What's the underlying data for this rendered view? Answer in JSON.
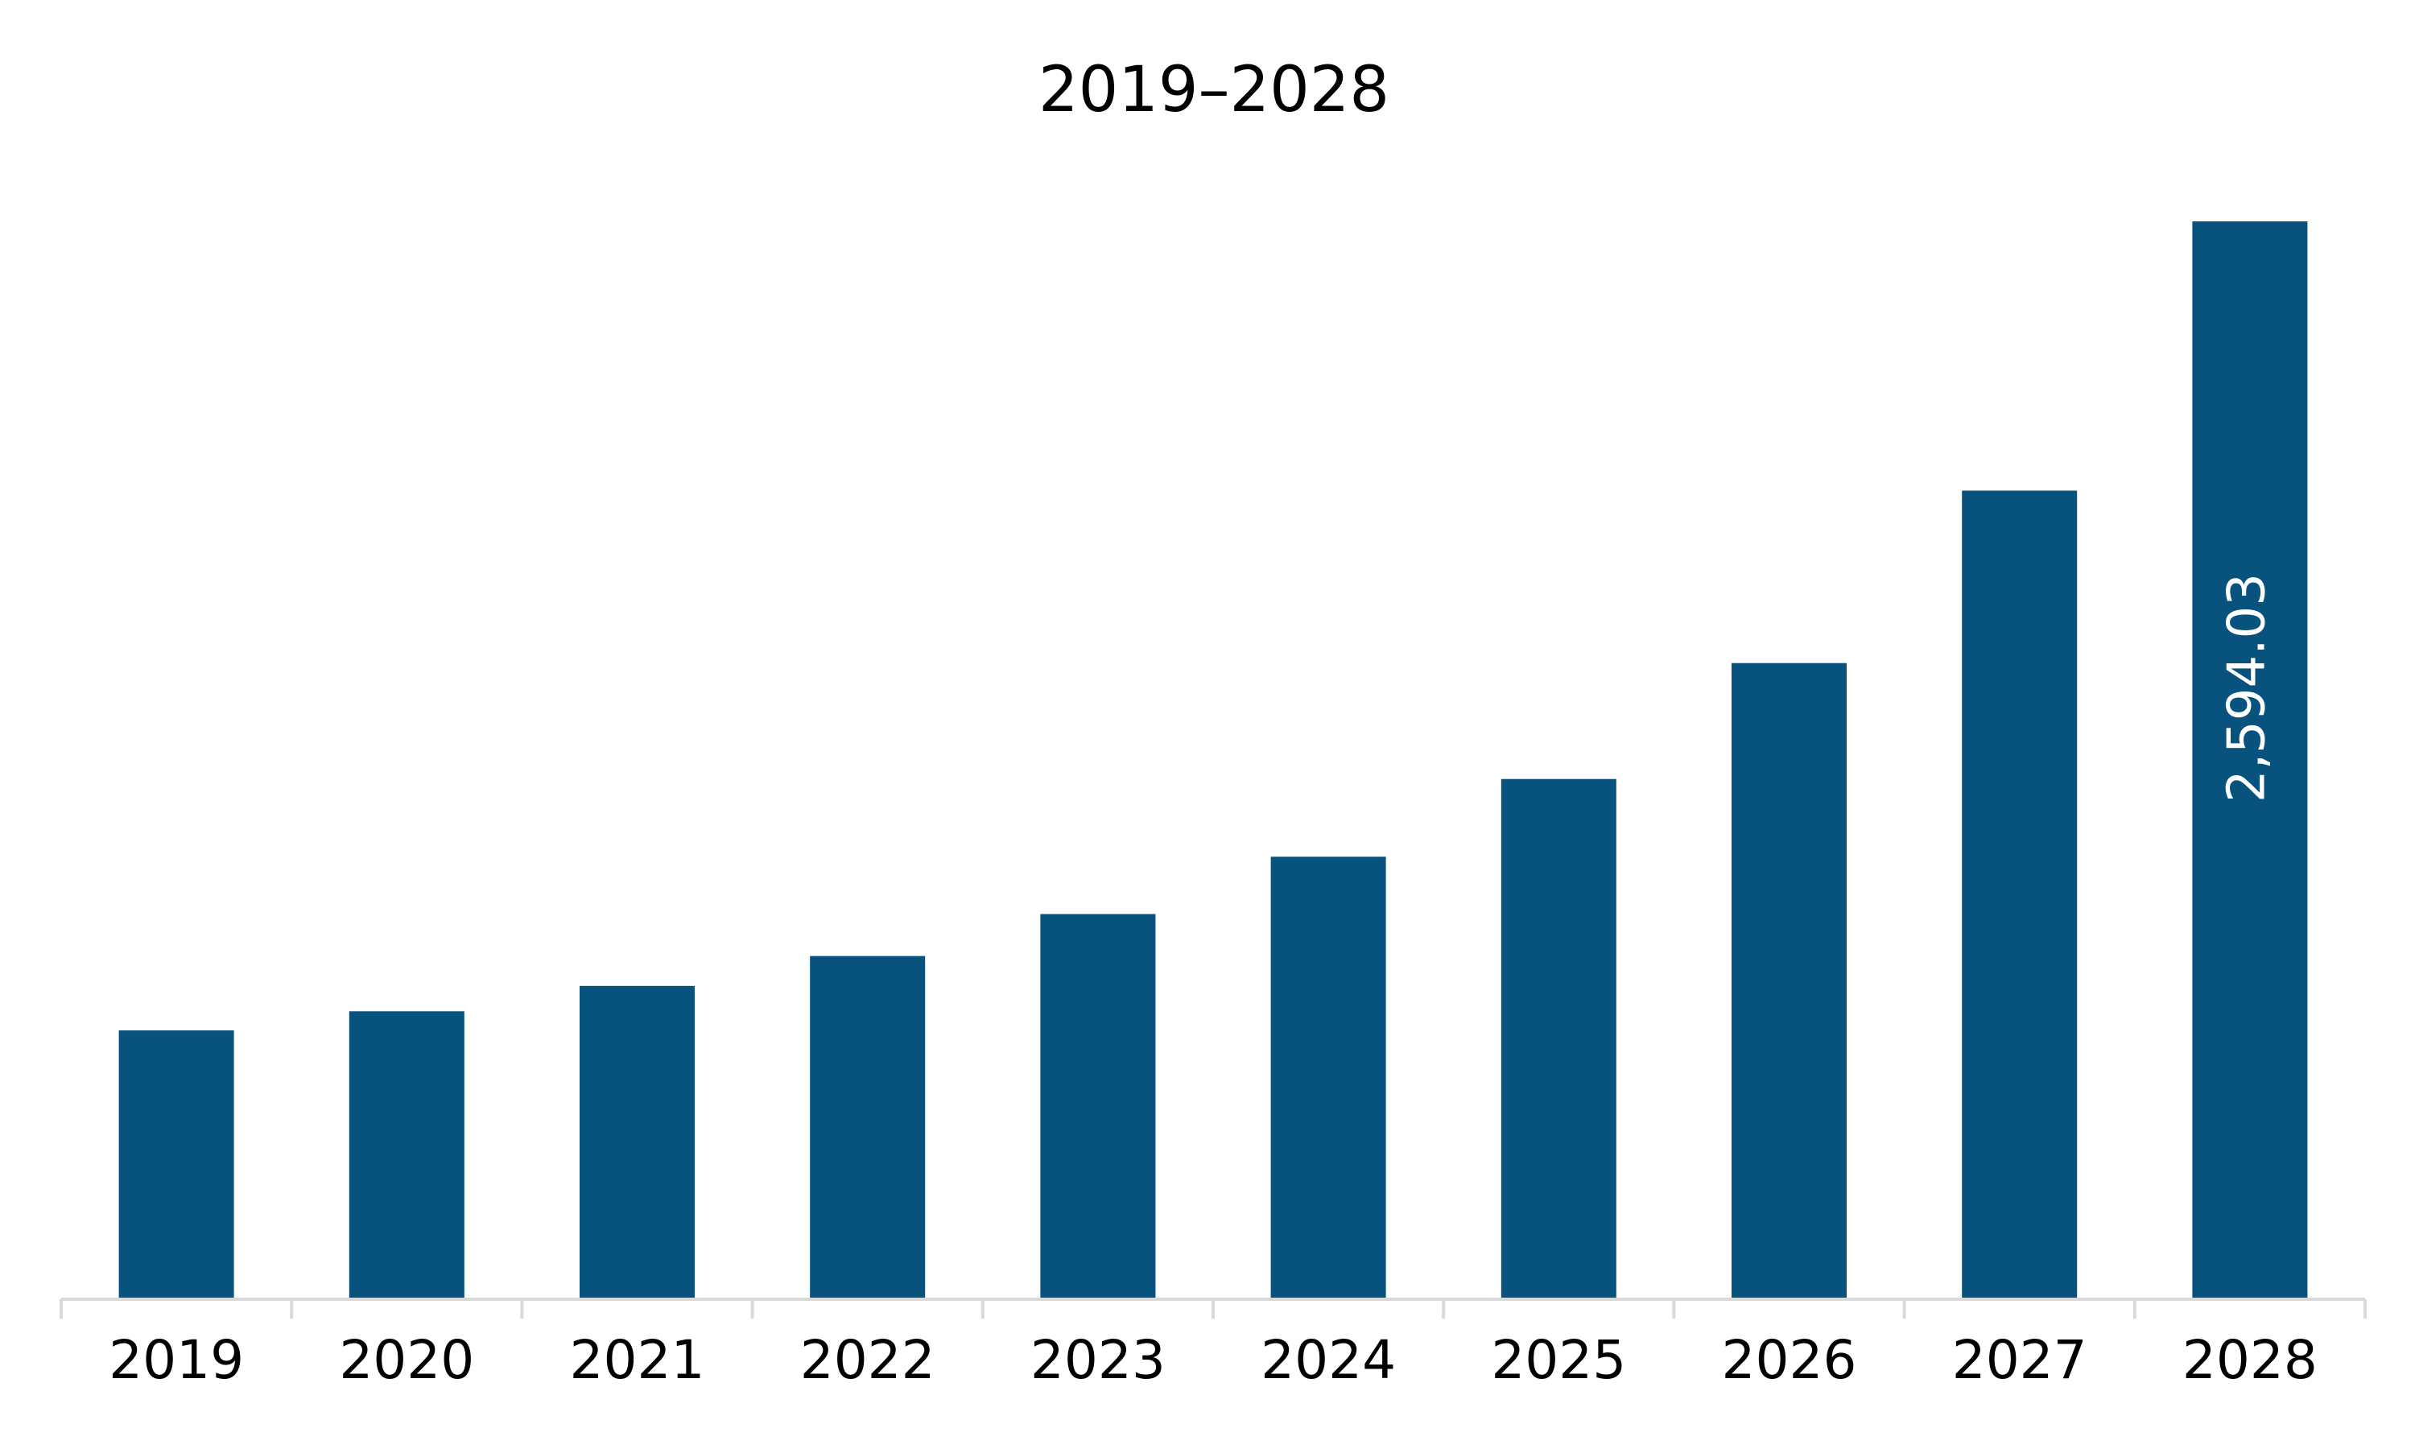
{
  "chart_data": {
    "type": "bar",
    "title": "2019–2028",
    "xlabel": "",
    "ylabel": "",
    "categories": [
      "2019",
      "2020",
      "2021",
      "2022",
      "2023",
      "2024",
      "2025",
      "2026",
      "2027",
      "2028"
    ],
    "values": [
      647,
      693,
      754,
      826,
      927,
      1065,
      1252,
      1531,
      1946,
      2594.03
    ],
    "data_labels": [
      "",
      "",
      "",
      "",
      "",
      "",
      "",
      "",
      "",
      "2,594.03"
    ],
    "ylim": [
      0,
      2594.03
    ],
    "grid": false,
    "legend": "none",
    "colors": {
      "bar": "#08527e",
      "axis": "#d9d9d9",
      "text": "#000000",
      "data_label": "#ffffff"
    }
  }
}
